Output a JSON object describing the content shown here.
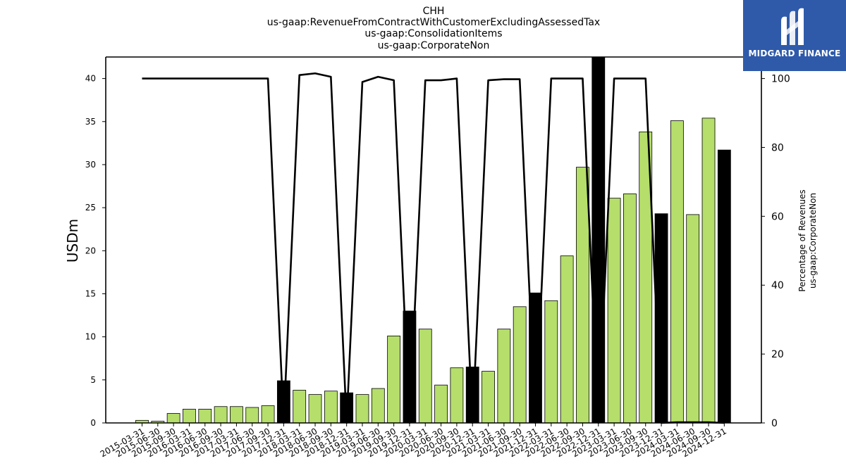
{
  "header": {
    "title_lines": [
      "CHH",
      "us-gaap:RevenueFromContractWithCustomerExcludingAssessedTax",
      "us-gaap:ConsolidationItems",
      "us-gaap:CorporateNon"
    ]
  },
  "logo": {
    "text": "MIDGARD FINANCE",
    "color": "#2f5aaa"
  },
  "chart_data": {
    "type": "bar",
    "title": "CHH\nus-gaap:RevenueFromContractWithCustomerExcludingAssessedTax\nus-gaap:ConsolidationItems\nus-gaap:CorporateNon",
    "ylabel": "USDm",
    "y2label_lines": [
      "Percentage of Revenues",
      "us-gaap:CorporateNon"
    ],
    "ylim": [
      0,
      42.5
    ],
    "y2lim": [
      0,
      106.25
    ],
    "yticks": [
      0,
      5,
      10,
      15,
      20,
      25,
      30,
      35,
      40
    ],
    "y2ticks": [
      0,
      20,
      40,
      60,
      80,
      100
    ],
    "grid": false,
    "colors": {
      "quarter": "#b5de6b",
      "annual": "#000000",
      "line": "#000000"
    },
    "categories": [
      "2015-03-31",
      "2015-06-30",
      "2015-09-30",
      "2016-03-31",
      "2016-06-30",
      "2016-09-30",
      "2017-03-31",
      "2017-06-30",
      "2017-09-30",
      "2017-12-31",
      "2018-03-31",
      "2018-06-30",
      "2018-09-30",
      "2018-12-31",
      "2019-03-31",
      "2019-06-30",
      "2019-09-30",
      "2019-12-31",
      "2020-03-31",
      "2020-06-30",
      "2020-09-30",
      "2020-12-31",
      "2021-03-31",
      "2021-06-30",
      "2021-09-30",
      "2021-12-31",
      "2022-03-31",
      "2022-06-30",
      "2022-09-30",
      "2022-12-31",
      "2023-03-31",
      "2023-06-30",
      "2023-09-30",
      "2023-12-31",
      "2024-03-31",
      "2024-06-30",
      "2024-09-30",
      "2024-12-31"
    ],
    "series": [
      {
        "values": [
          0.3,
          0.2,
          1.1,
          1.6,
          1.6,
          1.9,
          1.9,
          1.8,
          2.0,
          4.9,
          3.8,
          3.3,
          3.7,
          3.5,
          3.3,
          4.0,
          10.1,
          13.0,
          10.9,
          4.4,
          6.4,
          6.5,
          6.0,
          10.9,
          13.5,
          15.1,
          14.2,
          19.4,
          29.7,
          42.5,
          26.1,
          26.6,
          33.8,
          24.3,
          35.1,
          24.2,
          35.4,
          31.7
        ],
        "is_annual": [
          false,
          false,
          false,
          false,
          false,
          false,
          false,
          false,
          false,
          true,
          false,
          false,
          false,
          true,
          false,
          false,
          false,
          true,
          false,
          false,
          false,
          true,
          false,
          false,
          false,
          true,
          false,
          false,
          false,
          true,
          false,
          false,
          false,
          true,
          false,
          false,
          false,
          true
        ]
      },
      {
        "axis": "right",
        "type": "line",
        "values": [
          100,
          100,
          100,
          100,
          100,
          100,
          100,
          100,
          100,
          0,
          101,
          101.5,
          100.5,
          0,
          99,
          100.5,
          99.5,
          0,
          99.5,
          99.5,
          100,
          0,
          99.5,
          99.8,
          99.8,
          0,
          100,
          100,
          100,
          0,
          100,
          100,
          100,
          0,
          0.2,
          0.2,
          0.2,
          0
        ]
      }
    ]
  }
}
